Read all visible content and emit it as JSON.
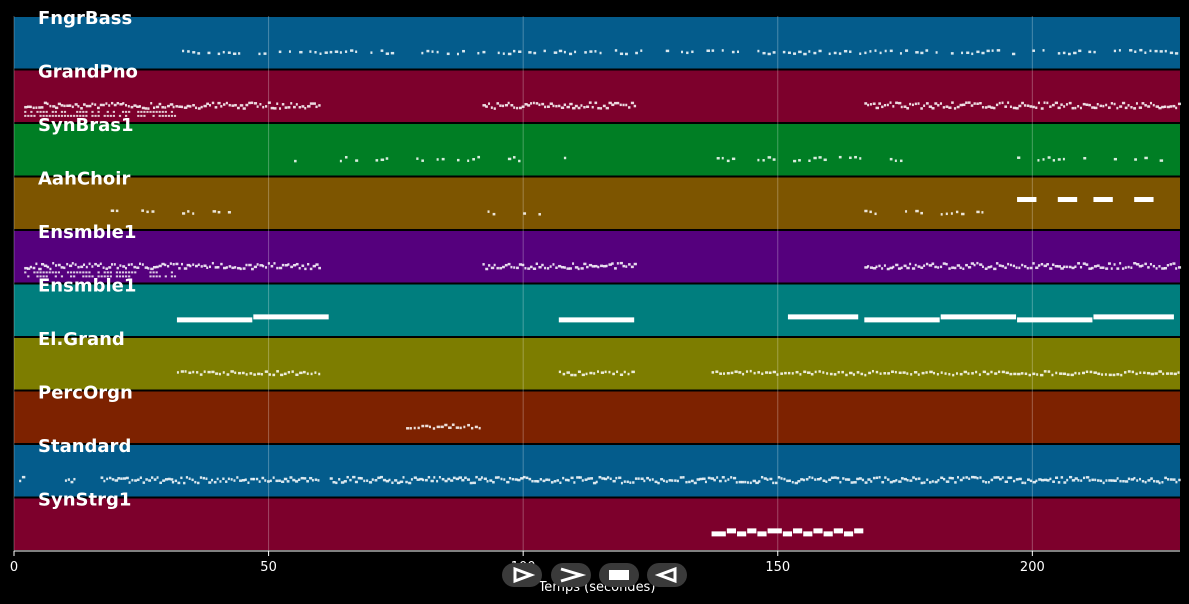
{
  "chart_data": {
    "type": "piano-roll",
    "xlabel": "Temps (secondes)",
    "xlim": [
      0,
      229
    ],
    "x_ticks": [
      0,
      50,
      100,
      150,
      200
    ],
    "grid": true,
    "tracks": [
      {
        "name": "FngrBass",
        "color": "#045c8c",
        "segments": [
          [
            32,
            229
          ]
        ],
        "style": "sparse"
      },
      {
        "name": "GrandPno",
        "color": "#7d002c",
        "segments": [
          [
            2,
            60
          ],
          [
            92,
            122
          ],
          [
            167,
            229
          ]
        ],
        "style": "dense",
        "low_cluster": [
          2,
          32
        ]
      },
      {
        "name": "SynBras1",
        "color": "#007e24",
        "segments": [
          [
            47,
            48
          ],
          [
            55,
            56
          ],
          [
            63,
            68
          ],
          [
            71,
            75
          ],
          [
            78,
            92
          ],
          [
            97,
            100
          ],
          [
            108,
            109
          ],
          [
            115,
            116
          ],
          [
            138,
            143
          ],
          [
            146,
            150
          ],
          [
            152,
            167
          ],
          [
            172,
            175
          ],
          [
            197,
            198
          ],
          [
            201,
            207
          ],
          [
            210,
            211
          ],
          [
            216,
            217
          ],
          [
            219,
            223
          ],
          [
            225,
            228
          ]
        ],
        "style": "sparse"
      },
      {
        "name": "AahChoir",
        "color": "#7d5500",
        "segments": [
          [
            17,
            21
          ],
          [
            24,
            28
          ],
          [
            32,
            36
          ],
          [
            39,
            43
          ],
          [
            92,
            96
          ],
          [
            100,
            104
          ],
          [
            142,
            144
          ],
          [
            150,
            152
          ],
          [
            167,
            171
          ],
          [
            174,
            179
          ],
          [
            182,
            187
          ],
          [
            189,
            193
          ]
        ],
        "style": "sparse",
        "long_notes": [
          [
            197,
            201
          ],
          [
            205,
            209
          ],
          [
            212,
            216
          ],
          [
            220,
            224
          ]
        ]
      },
      {
        "name": "Ensmble1",
        "color": "#55007d",
        "segments": [
          [
            2,
            60
          ],
          [
            92,
            122
          ],
          [
            167,
            229
          ]
        ],
        "style": "dense",
        "low_cluster": [
          2,
          32
        ]
      },
      {
        "name": "Ensmble1",
        "color": "#007e7e",
        "segments": [],
        "style": "long",
        "long_notes": [
          [
            32,
            47
          ],
          [
            47,
            62
          ],
          [
            107,
            122
          ],
          [
            152,
            166
          ],
          [
            167,
            182
          ],
          [
            182,
            197
          ],
          [
            197,
            212
          ],
          [
            212,
            228
          ]
        ]
      },
      {
        "name": "El.Grand",
        "color": "#7d7d00",
        "segments": [
          [
            32,
            60
          ],
          [
            107,
            122
          ],
          [
            137,
            167
          ],
          [
            167,
            229
          ]
        ],
        "style": "medium"
      },
      {
        "name": "PercOrgn",
        "color": "#7d2200",
        "segments": [
          [
            77,
            92
          ]
        ],
        "style": "medium"
      },
      {
        "name": "Standard",
        "color": "#045c8c",
        "segments": [
          [
            1,
            2
          ],
          [
            10,
            12
          ],
          [
            17,
            31
          ],
          [
            31,
            60
          ],
          [
            62,
            229
          ]
        ],
        "style": "dense"
      },
      {
        "name": "SynStrg1",
        "color": "#7d002c",
        "segments": [],
        "style": "long",
        "long_notes": [
          [
            137,
            140
          ],
          [
            140,
            142
          ],
          [
            142,
            144
          ],
          [
            144,
            146
          ],
          [
            146,
            148
          ],
          [
            148,
            151
          ],
          [
            151,
            153
          ],
          [
            153,
            155
          ],
          [
            155,
            157
          ],
          [
            157,
            159
          ],
          [
            159,
            161
          ],
          [
            161,
            163
          ],
          [
            163,
            165
          ],
          [
            165,
            167
          ]
        ]
      }
    ]
  },
  "controls": [
    {
      "name": "play-icon"
    },
    {
      "name": "fast-forward-icon"
    },
    {
      "name": "stop-icon"
    },
    {
      "name": "rewind-icon"
    }
  ]
}
